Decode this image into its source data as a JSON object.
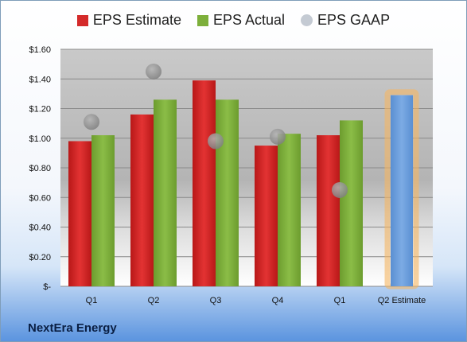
{
  "chart_data": {
    "type": "bar",
    "categories": [
      "Q1",
      "Q2",
      "Q3",
      "Q4",
      "Q1",
      "Q2 Estimate"
    ],
    "series": [
      {
        "name": "EPS Estimate",
        "color": "#d42a2a",
        "values": [
          0.98,
          1.16,
          1.39,
          0.95,
          1.02,
          null
        ]
      },
      {
        "name": "EPS Actual",
        "color": "#7daf3b",
        "values": [
          1.02,
          1.26,
          1.26,
          1.03,
          1.12,
          null
        ]
      },
      {
        "name": "Q2 Estimate",
        "color": "#6fa0da",
        "values": [
          null,
          null,
          null,
          null,
          null,
          1.29
        ]
      },
      {
        "name": "EPS GAAP",
        "color": "#b8bec8",
        "type": "scatter",
        "values": [
          1.11,
          1.45,
          0.98,
          1.01,
          0.65,
          null
        ]
      }
    ],
    "ylim": [
      0,
      1.6
    ],
    "yticks": [
      0,
      0.2,
      0.4,
      0.6,
      0.8,
      1.0,
      1.2,
      1.4,
      1.6
    ],
    "ytick_labels": [
      "$-",
      "$0.20",
      "$0.40",
      "$0.60",
      "$0.80",
      "$1.00",
      "$1.20",
      "$1.40",
      "$1.60"
    ],
    "grid": true,
    "legend_position": "top"
  },
  "legend": [
    {
      "label": "EPS Estimate",
      "color": "#d42a2a",
      "shape": "square"
    },
    {
      "label": "EPS Actual",
      "color": "#7daf3b",
      "shape": "square"
    },
    {
      "label": "EPS GAAP",
      "color": "#c4cad3",
      "shape": "circle"
    }
  ],
  "company": "NextEra Energy"
}
